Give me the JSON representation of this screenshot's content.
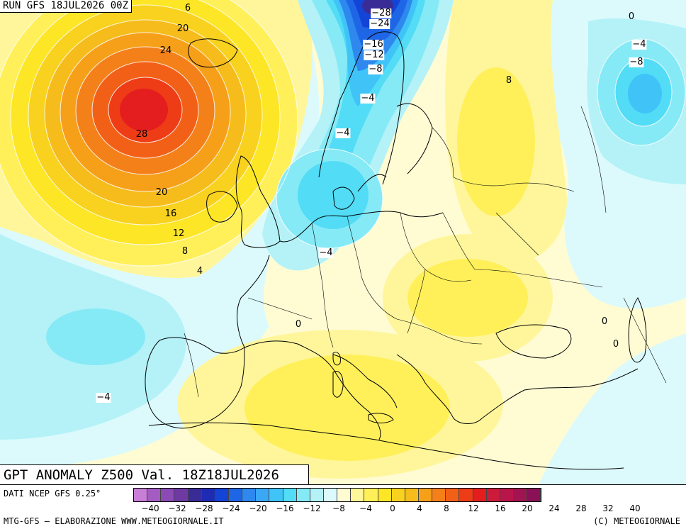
{
  "header": {
    "run_label": "RUN GFS 18JUL2026 00Z"
  },
  "title": {
    "text": "GPT ANOMALY Z500 Val. 18Z18JUL2026"
  },
  "footer": {
    "source": "DATI NCEP GFS 0.25°",
    "credit": "MTG-GFS — ELABORAZIONE WWW.METEOGIORNALE.IT",
    "copyright": "(C) METEOGIORNALE"
  },
  "legend": {
    "colors": [
      "#c87ed6",
      "#a45cc2",
      "#8c4bb4",
      "#6e3aa2",
      "#3a2c96",
      "#1e2cb4",
      "#1444d6",
      "#1e66e6",
      "#2e88ee",
      "#3aa8f4",
      "#40c4f8",
      "#52dcf6",
      "#86eaf6",
      "#b4f2f8",
      "#dcfafc",
      "#fffcd4",
      "#fff69c",
      "#fff05a",
      "#fce626",
      "#f8d21e",
      "#f6bc1c",
      "#f6a01a",
      "#f4801a",
      "#f26018",
      "#ee3c16",
      "#e41e1e",
      "#cc1a3a",
      "#b8164a",
      "#a01452",
      "#8a1058"
    ],
    "tick_labels": [
      "−40",
      "−32",
      "−28",
      "−24",
      "−20",
      "−16",
      "−12",
      "−8",
      "−4",
      "0",
      "4",
      "8",
      "12",
      "16",
      "20",
      "24",
      "28",
      "32",
      "40"
    ]
  },
  "contour_labels": [
    "−28",
    "−24",
    "−16",
    "−12",
    "−8",
    "−4",
    "−4",
    "−4",
    "−4",
    "−4",
    "−4",
    "−8",
    "0",
    "0",
    "0",
    "0",
    "8",
    "20",
    "24",
    "28",
    "20",
    "16",
    "12",
    "8",
    "4",
    "6"
  ]
}
